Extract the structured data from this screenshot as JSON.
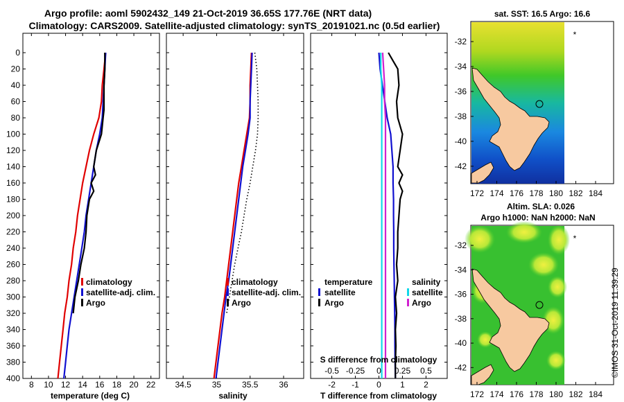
{
  "header": {
    "line1": "Argo profile: aoml 5902432_149 21-Oct-2019 36.65S 177.76E (NRT data)",
    "line2": "Climatology: CARS2009. Satellite-adjusted climatology: synTS_20191021.nc (0.5d earlier)"
  },
  "footer": {
    "stamp": "©IMOS 31-Oct-2019 11:39:29"
  },
  "colors": {
    "climatology": "#e00000",
    "satellite": "#1010d0",
    "argo": "#000000",
    "sal_satellite": "#10d8e8",
    "sal_argo": "#d020d0",
    "land": "#f7c9a0"
  },
  "map_sst": {
    "title": "sat. SST: 16.5 Argo: 16.6",
    "subtitle": "",
    "subtitle2": "",
    "x_ticks": [
      "172",
      "174",
      "176",
      "178",
      "180",
      "182",
      "184"
    ],
    "y_ticks": [
      "-32",
      "-34",
      "-36",
      "-38",
      "-40",
      "-42"
    ],
    "marker": "*"
  },
  "map_sla": {
    "title": "Altim. SLA: 0.026",
    "subtitle": "Argo h1000: NaN h2000: NaN",
    "x_ticks": [
      "172",
      "174",
      "176",
      "178",
      "180",
      "182",
      "184"
    ],
    "y_ticks": [
      "-32",
      "-34",
      "-36",
      "-38",
      "-40",
      "-42"
    ],
    "marker": "*"
  },
  "chart_data": [
    {
      "type": "line",
      "name": "temperature",
      "xlabel": "temperature (deg C)",
      "ylabel": "depth",
      "xlim": [
        7,
        23
      ],
      "ylim": [
        400,
        0
      ],
      "x_ticks": [
        8,
        10,
        12,
        14,
        16,
        18,
        20,
        22
      ],
      "y_ticks": [
        0,
        20,
        40,
        60,
        80,
        100,
        120,
        140,
        160,
        180,
        200,
        220,
        240,
        260,
        280,
        300,
        320,
        340,
        360,
        380,
        400
      ],
      "y_tick_labels": [
        "0",
        "20",
        "40",
        "60",
        "80",
        "100",
        "120",
        "140",
        "160",
        "180",
        "200",
        "220",
        "240",
        "260",
        "280",
        "300",
        "320",
        "340",
        "360",
        "380",
        "400"
      ],
      "legend": [
        "climatology",
        "satellite-adj. clim.",
        "Argo"
      ],
      "series": [
        {
          "name": "climatology",
          "color_key": "climatology",
          "depth": [
            0,
            20,
            40,
            60,
            80,
            100,
            120,
            140,
            160,
            180,
            200,
            220,
            240,
            260,
            280,
            300,
            320,
            340,
            360,
            380,
            400
          ],
          "values": [
            16.7,
            16.5,
            16.3,
            16.2,
            15.9,
            15.3,
            14.8,
            14.4,
            14.0,
            13.7,
            13.4,
            13.2,
            12.9,
            12.7,
            12.4,
            12.2,
            11.9,
            11.7,
            11.5,
            11.3,
            11.1
          ]
        },
        {
          "name": "satellite-adj. clim.",
          "color_key": "satellite",
          "depth": [
            0,
            20,
            40,
            60,
            80,
            100,
            120,
            140,
            160,
            180,
            200,
            220,
            240,
            260,
            280,
            300,
            320,
            340,
            360,
            380,
            400
          ],
          "values": [
            16.7,
            16.6,
            16.5,
            16.4,
            16.3,
            16.0,
            15.6,
            15.3,
            15.0,
            14.7,
            14.4,
            14.2,
            13.9,
            13.6,
            13.3,
            13.0,
            12.7,
            12.4,
            12.2,
            12.0,
            11.8
          ]
        },
        {
          "name": "Argo",
          "color_key": "argo",
          "depth": [
            0,
            20,
            40,
            60,
            70,
            80,
            100,
            120,
            140,
            150,
            160,
            170,
            180,
            200,
            220,
            240,
            260,
            280,
            300,
            320
          ],
          "values": [
            16.6,
            16.6,
            16.5,
            16.5,
            16.5,
            16.4,
            16.2,
            15.6,
            15.3,
            15.5,
            15.0,
            15.3,
            14.8,
            14.5,
            14.4,
            14.2,
            13.8,
            13.5,
            13.1,
            12.9
          ]
        }
      ]
    },
    {
      "type": "line",
      "name": "salinity",
      "xlabel": "salinity",
      "ylabel": "depth",
      "xlim": [
        34.25,
        36.3
      ],
      "ylim": [
        400,
        0
      ],
      "x_ticks": [
        34.5,
        35,
        35.5,
        36
      ],
      "x_tick_labels": [
        "34.5",
        "35",
        "35.5",
        "36"
      ],
      "y_ticks": [
        0,
        20,
        40,
        60,
        80,
        100,
        120,
        140,
        160,
        180,
        200,
        220,
        240,
        260,
        280,
        300,
        320,
        340,
        360,
        380,
        400
      ],
      "legend": [
        "climatology",
        "satellite-adj. clim.",
        "Argo"
      ],
      "series": [
        {
          "name": "climatology",
          "color_key": "climatology",
          "depth": [
            0,
            20,
            40,
            60,
            80,
            100,
            120,
            140,
            160,
            180,
            200,
            220,
            240,
            260,
            280,
            300,
            320,
            340,
            360,
            380,
            400
          ],
          "values": [
            35.52,
            35.51,
            35.5,
            35.5,
            35.49,
            35.45,
            35.41,
            35.37,
            35.33,
            35.3,
            35.27,
            35.24,
            35.21,
            35.18,
            35.15,
            35.12,
            35.08,
            35.05,
            35.02,
            34.99,
            34.96
          ]
        },
        {
          "name": "satellite-adj. clim.",
          "color_key": "satellite",
          "depth": [
            0,
            20,
            40,
            60,
            80,
            100,
            120,
            140,
            160,
            180,
            200,
            220,
            240,
            260,
            280,
            300,
            320,
            340,
            360,
            380,
            400
          ],
          "values": [
            35.53,
            35.52,
            35.51,
            35.5,
            35.5,
            35.47,
            35.43,
            35.39,
            35.36,
            35.33,
            35.3,
            35.27,
            35.24,
            35.21,
            35.18,
            35.14,
            35.11,
            35.08,
            35.05,
            35.02,
            34.99
          ]
        },
        {
          "name": "Argo",
          "color_key": "argo",
          "dotted": true,
          "depth": [
            0,
            20,
            40,
            60,
            80,
            100,
            120,
            140,
            160,
            180,
            200,
            220,
            240,
            260,
            280,
            300,
            320
          ],
          "values": [
            35.57,
            35.6,
            35.61,
            35.62,
            35.62,
            35.61,
            35.58,
            35.54,
            35.5,
            35.45,
            35.41,
            35.37,
            35.32,
            35.27,
            35.23,
            35.19,
            35.15
          ]
        }
      ]
    },
    {
      "type": "line",
      "name": "difference",
      "xlabel": "T difference from climatology",
      "xlabel_top": "S difference from climatology",
      "xlim": [
        -2.9,
        2.9
      ],
      "ylim": [
        400,
        0
      ],
      "x_ticks": [
        -2,
        -1,
        0,
        1,
        2
      ],
      "x_tick_labels": [
        "-2",
        "-1",
        "0",
        "1",
        "2"
      ],
      "s_ticks": [
        -0.5,
        -0.25,
        0,
        0.25,
        0.5
      ],
      "s_tick_labels": [
        "-0.5",
        "-0.25",
        "0",
        "0.25",
        "0.5"
      ],
      "s_xlim": [
        -0.725,
        0.725
      ],
      "legend_left_title": "temperature",
      "legend_left": [
        "satellite",
        "Argo"
      ],
      "legend_right_title": "salinity",
      "legend_right": [
        "satellite",
        "Argo"
      ],
      "series": [
        {
          "name": "T satellite",
          "color_key": "satellite",
          "axis": "T",
          "depth": [
            0,
            20,
            40,
            60,
            80,
            100,
            120,
            140,
            160,
            180,
            200,
            220,
            240,
            260,
            280,
            300,
            320,
            340,
            360,
            380,
            400
          ],
          "values": [
            0.0,
            0.05,
            0.15,
            0.25,
            0.35,
            0.5,
            0.55,
            0.6,
            0.6,
            0.62,
            0.62,
            0.63,
            0.63,
            0.64,
            0.65,
            0.66,
            0.67,
            0.68,
            0.68,
            0.69,
            0.7
          ]
        },
        {
          "name": "T Argo",
          "color_key": "argo",
          "axis": "T",
          "depth": [
            0,
            10,
            20,
            40,
            60,
            80,
            100,
            120,
            140,
            150,
            160,
            170,
            180,
            200,
            220,
            240,
            260,
            280,
            300,
            320,
            340,
            360,
            380,
            400
          ],
          "values": [
            0.4,
            0.6,
            0.8,
            0.85,
            0.75,
            0.8,
            1.0,
            0.9,
            0.8,
            1.0,
            0.85,
            1.0,
            0.9,
            0.85,
            0.8,
            0.8,
            0.75,
            0.8,
            0.7,
            0.75,
            0.7,
            0.72,
            0.7,
            0.7
          ]
        },
        {
          "name": "S satellite",
          "color_key": "sal_satellite",
          "axis": "S",
          "depth": [
            0,
            20,
            40,
            60,
            80,
            100,
            120,
            140,
            160,
            180,
            200,
            220,
            240,
            260,
            280,
            300,
            320,
            340,
            360,
            380,
            400
          ],
          "values": [
            0.02,
            0.02,
            0.03,
            0.03,
            0.03,
            0.03,
            0.03,
            0.03,
            0.03,
            0.03,
            0.03,
            0.03,
            0.03,
            0.03,
            0.03,
            0.03,
            0.03,
            0.03,
            0.03,
            0.03,
            0.03
          ]
        },
        {
          "name": "S Argo",
          "color_key": "sal_argo",
          "axis": "S",
          "depth": [
            0,
            20,
            40,
            60,
            80,
            100,
            120,
            140,
            160,
            180,
            200,
            220,
            240,
            260,
            280,
            300,
            320,
            340,
            360,
            380,
            400
          ],
          "values": [
            0.04,
            0.05,
            0.06,
            0.06,
            0.07,
            0.07,
            0.07,
            0.07,
            0.07,
            0.07,
            0.07,
            0.07,
            0.07,
            0.07,
            0.07,
            0.07,
            0.07,
            0.07,
            0.07,
            0.07,
            0.07
          ]
        }
      ]
    }
  ]
}
